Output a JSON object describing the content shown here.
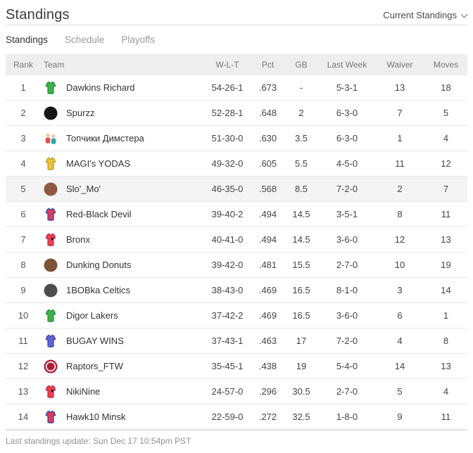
{
  "header": {
    "title": "Standings",
    "dropdown_label": "Current Standings"
  },
  "tabs": [
    {
      "label": "Standings",
      "active": true
    },
    {
      "label": "Schedule",
      "active": false
    },
    {
      "label": "Playoffs",
      "active": false
    }
  ],
  "table": {
    "columns": [
      "Rank",
      "Team",
      "W-L-T",
      "Pct",
      "GB",
      "Last Week",
      "Waiver",
      "Moves"
    ],
    "rows": [
      {
        "rank": "1",
        "team": "Dawkins Richard",
        "icon": {
          "name": "green-jersey-icon",
          "type": "jersey",
          "color": "#3cb24d",
          "trim": "#2f9440"
        },
        "wlt": "54-26-1",
        "pct": ".673",
        "gb": "-",
        "last_week": "5-3-1",
        "waiver": "13",
        "moves": "18",
        "highlight": false
      },
      {
        "rank": "2",
        "team": "Spurzz",
        "icon": {
          "name": "spurs-logo-icon",
          "type": "circle",
          "color": "#161616"
        },
        "wlt": "52-28-1",
        "pct": ".648",
        "gb": "2",
        "last_week": "6-3-0",
        "waiver": "7",
        "moves": "5",
        "highlight": false
      },
      {
        "rank": "3",
        "team": "Топчики Димстера",
        "icon": {
          "name": "cartoon-characters-icon",
          "type": "figures",
          "colors": [
            "#e05252",
            "#2fa8a0"
          ]
        },
        "wlt": "51-30-0",
        "pct": ".630",
        "gb": "3.5",
        "last_week": "6-3-0",
        "waiver": "1",
        "moves": "4",
        "highlight": false
      },
      {
        "rank": "4",
        "team": "MAGI's YODAS",
        "icon": {
          "name": "yellow-jersey-icon",
          "type": "jersey",
          "color": "#e7c33c",
          "trim": "#c3a026"
        },
        "wlt": "49-32-0",
        "pct": ".605",
        "gb": "5.5",
        "last_week": "4-5-0",
        "waiver": "11",
        "moves": "12",
        "highlight": false
      },
      {
        "rank": "5",
        "team": "Slo'_Mo'",
        "icon": {
          "name": "player-photo-avatar",
          "type": "circle",
          "color": "#8d5a41"
        },
        "wlt": "46-35-0",
        "pct": ".568",
        "gb": "8.5",
        "last_week": "7-2-0",
        "waiver": "2",
        "moves": "7",
        "highlight": true
      },
      {
        "rank": "6",
        "team": "Red-Black Devil",
        "icon": {
          "name": "red-blue-jersey-icon",
          "type": "jersey",
          "color": "#e23b52",
          "trim": "#3947a8"
        },
        "wlt": "39-40-2",
        "pct": ".494",
        "gb": "14.5",
        "last_week": "3-5-1",
        "waiver": "8",
        "moves": "11",
        "highlight": false
      },
      {
        "rank": "7",
        "team": "Bronx",
        "icon": {
          "name": "red-jersey-icon",
          "type": "jersey",
          "color": "#ef3f52",
          "trim": "#c42f40",
          "dot": true
        },
        "wlt": "40-41-0",
        "pct": ".494",
        "gb": "14.5",
        "last_week": "3-6-0",
        "waiver": "12",
        "moves": "13",
        "highlight": false
      },
      {
        "rank": "8",
        "team": "Dunking Donuts",
        "icon": {
          "name": "donuts-photo-icon",
          "type": "circle",
          "color": "#7d5436"
        },
        "wlt": "39-42-0",
        "pct": ".481",
        "gb": "15.5",
        "last_week": "2-7-0",
        "waiver": "10",
        "moves": "19",
        "highlight": false
      },
      {
        "rank": "9",
        "team": "1BOBka Celtics",
        "icon": {
          "name": "dark-photo-icon",
          "type": "circle",
          "color": "#4d4d4d"
        },
        "wlt": "38-43-0",
        "pct": ".469",
        "gb": "16.5",
        "last_week": "8-1-0",
        "waiver": "3",
        "moves": "14",
        "highlight": false
      },
      {
        "rank": "10",
        "team": "Digor Lakers",
        "icon": {
          "name": "green-jersey-icon",
          "type": "jersey",
          "color": "#3cb24d",
          "trim": "#2f9440"
        },
        "wlt": "37-42-2",
        "pct": ".469",
        "gb": "16.5",
        "last_week": "3-6-0",
        "waiver": "6",
        "moves": "1",
        "highlight": false
      },
      {
        "rank": "11",
        "team": "BUGAY WINS",
        "icon": {
          "name": "blue-jersey-icon",
          "type": "jersey",
          "color": "#5e64cf",
          "trim": "#4046b0"
        },
        "wlt": "37-43-1",
        "pct": ".463",
        "gb": "17",
        "last_week": "7-2-0",
        "waiver": "4",
        "moves": "8",
        "highlight": false
      },
      {
        "rank": "12",
        "team": "Raptors_FTW",
        "icon": {
          "name": "raptors-logo-icon",
          "type": "circle",
          "color": "#b01c3c",
          "ring": true
        },
        "wlt": "35-45-1",
        "pct": ".438",
        "gb": "19",
        "last_week": "5-4-0",
        "waiver": "14",
        "moves": "13",
        "highlight": false
      },
      {
        "rank": "13",
        "team": "NikiNine",
        "icon": {
          "name": "red-jersey-icon",
          "type": "jersey",
          "color": "#ef3f52",
          "trim": "#c42f40",
          "dot": true
        },
        "wlt": "24-57-0",
        "pct": ".296",
        "gb": "30.5",
        "last_week": "2-7-0",
        "waiver": "5",
        "moves": "4",
        "highlight": false
      },
      {
        "rank": "14",
        "team": "Hawk10 Minsk",
        "icon": {
          "name": "red-blue-jersey-icon",
          "type": "jersey",
          "color": "#e23b52",
          "trim": "#3947a8"
        },
        "wlt": "22-59-0",
        "pct": ".272",
        "gb": "32.5",
        "last_week": "1-8-0",
        "waiver": "9",
        "moves": "11",
        "highlight": false
      }
    ]
  },
  "footer": {
    "update_text": "Last standings update: Sun Dec 17 10:54pm PST"
  }
}
